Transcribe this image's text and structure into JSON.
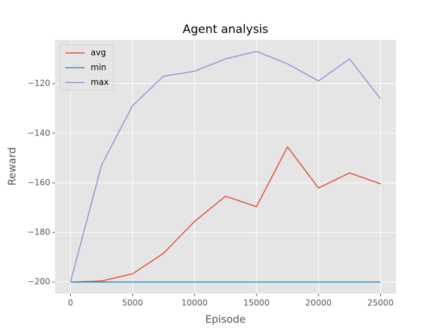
{
  "chart_data": {
    "type": "line",
    "title": "Agent analysis",
    "x_label": "Episode",
    "y_label": "Reward",
    "x": [
      0,
      2500,
      5000,
      7500,
      10000,
      12500,
      15000,
      17500,
      20000,
      22500,
      25000
    ],
    "series": [
      {
        "name": "avg",
        "color": "#E24A33",
        "values": [
          -200,
          -199.6,
          -196.7,
          -188.4,
          -175.6,
          -165.4,
          -169.6,
          -145.5,
          -162.1,
          -156.0,
          -160.4
        ]
      },
      {
        "name": "min",
        "color": "#348ABD",
        "values": [
          -200,
          -200,
          -200,
          -200,
          -200,
          -200,
          -200,
          -200,
          -200,
          -200,
          -200
        ]
      },
      {
        "name": "max",
        "color": "#988ED5",
        "values": [
          -200,
          -152.9,
          -128.9,
          -117.0,
          -115.0,
          -110.0,
          -107.0,
          -112.0,
          -118.9,
          -110.0,
          -126.1
        ]
      }
    ],
    "xlim": [
      -1250,
      26250
    ],
    "xticks": [
      0,
      5000,
      10000,
      15000,
      20000,
      25000
    ],
    "ylim": [
      -204.65,
      -102.35
    ],
    "yticks": [
      {
        "value": -200,
        "label": "−200"
      },
      {
        "value": -180,
        "label": "−180"
      },
      {
        "value": -160,
        "label": "−160"
      },
      {
        "value": -140,
        "label": "−140"
      },
      {
        "value": -120,
        "label": "−120"
      }
    ],
    "grid": true,
    "legend": "upper left"
  }
}
